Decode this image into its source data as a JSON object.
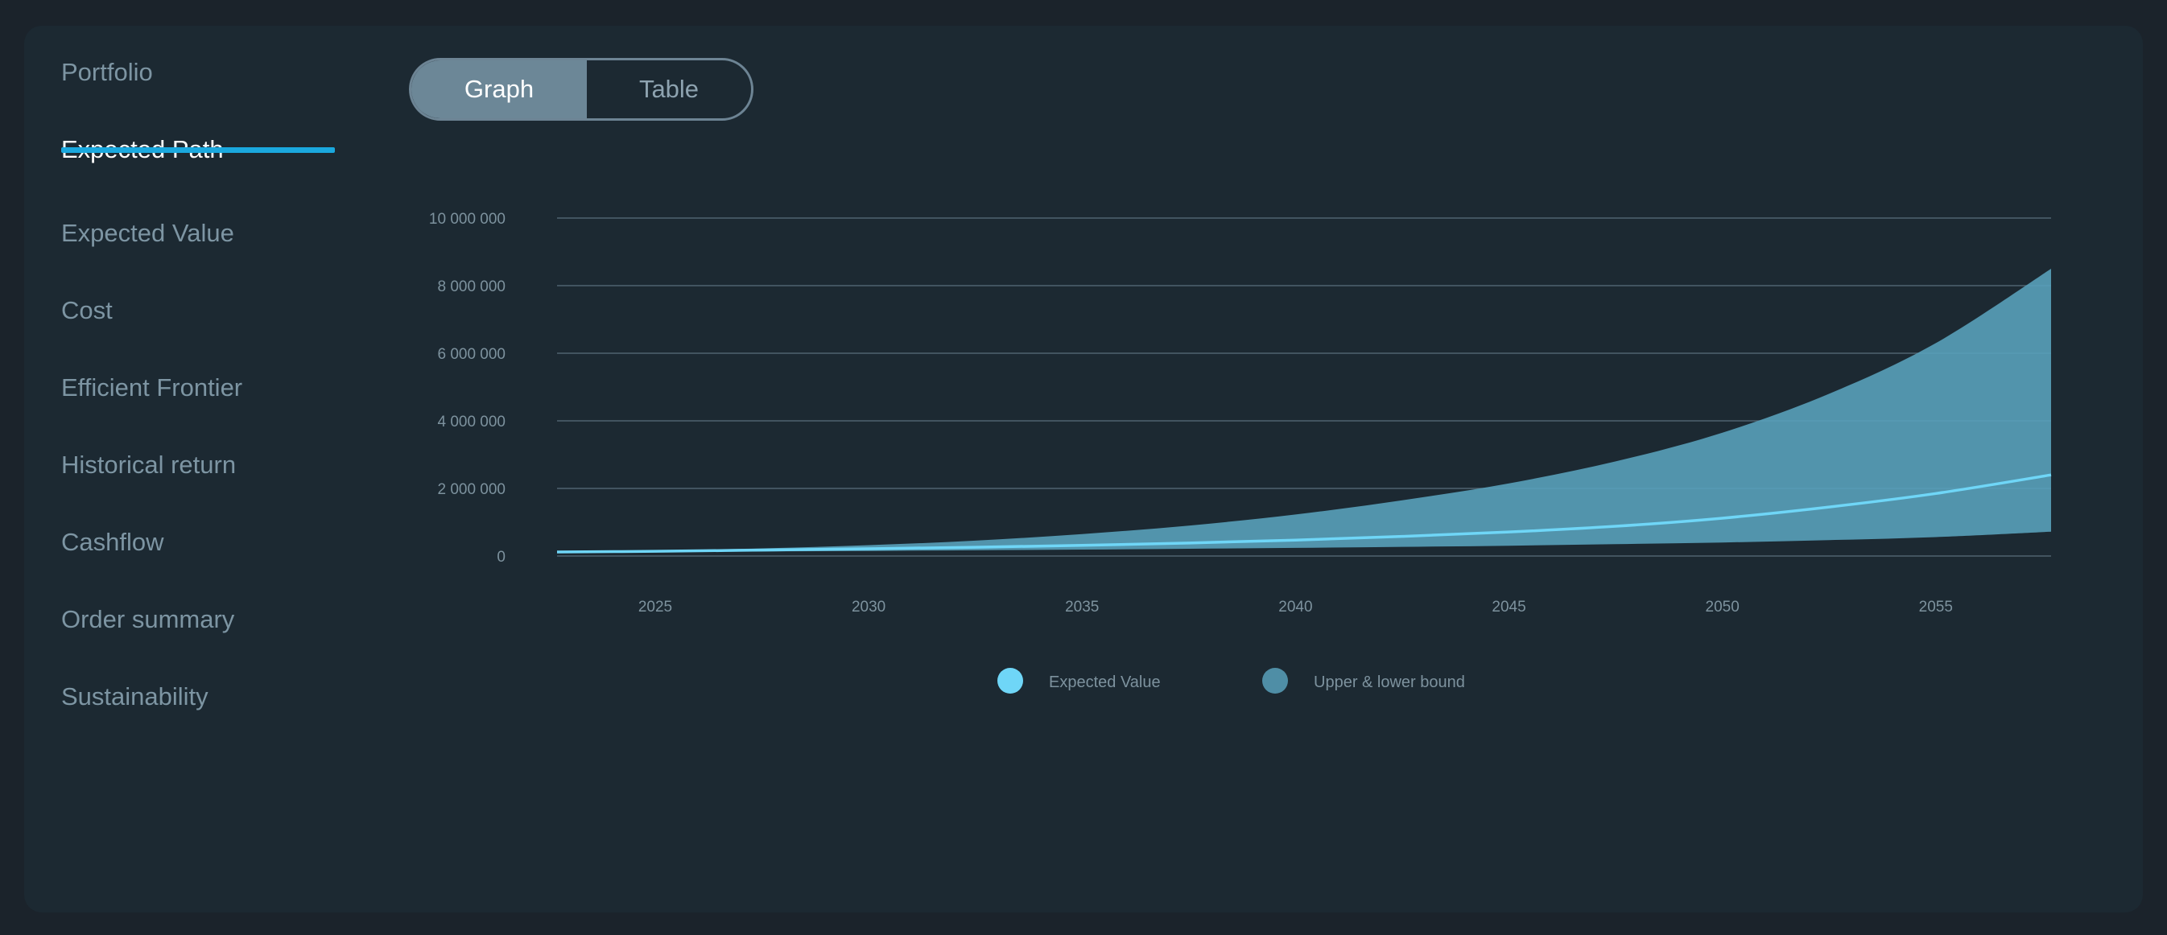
{
  "nav": {
    "items": [
      {
        "label": "Portfolio",
        "name": "sidebar-item-portfolio",
        "active": false
      },
      {
        "label": "Expected Path",
        "name": "sidebar-item-expected-path",
        "active": true
      },
      {
        "label": "Expected Value",
        "name": "sidebar-item-expected-value",
        "active": false
      },
      {
        "label": "Cost",
        "name": "sidebar-item-cost",
        "active": false
      },
      {
        "label": "Efficient Frontier",
        "name": "sidebar-item-efficient-frontier",
        "active": false
      },
      {
        "label": "Historical return",
        "name": "sidebar-item-historical-return",
        "active": false
      },
      {
        "label": "Cashflow",
        "name": "sidebar-item-cashflow",
        "active": false
      },
      {
        "label": "Order summary",
        "name": "sidebar-item-order-summary",
        "active": false
      },
      {
        "label": "Sustainability",
        "name": "sidebar-item-sustainability",
        "active": false
      }
    ]
  },
  "view_toggle": {
    "graph_label": "Graph",
    "table_label": "Table",
    "selected": "Graph"
  },
  "colors": {
    "accent": "#1aa8de",
    "expected_line": "#6fd6f7",
    "bound_area": "#5aa3bd",
    "grid": "#4f636f",
    "tick_text": "#7d929e"
  },
  "chart_data": {
    "type": "area",
    "x": [
      2022.7,
      2025,
      2027.5,
      2030,
      2032.5,
      2035,
      2037.5,
      2040,
      2042.5,
      2045,
      2047.5,
      2050,
      2052.5,
      2055,
      2057.7
    ],
    "series": [
      {
        "name": "Expected Value",
        "type": "line",
        "values": [
          120000,
          140000,
          175000,
          215000,
          260000,
          315000,
          385000,
          470000,
          580000,
          710000,
          880000,
          1120000,
          1450000,
          1850000,
          2400000
        ]
      },
      {
        "name": "Upper & lower bound",
        "type": "band",
        "upper": [
          130000,
          165000,
          225000,
          320000,
          455000,
          650000,
          900000,
          1230000,
          1650000,
          2150000,
          2800000,
          3650000,
          4800000,
          6300000,
          8500000
        ],
        "lower": [
          115000,
          120000,
          135000,
          150000,
          170000,
          190000,
          215000,
          240000,
          270000,
          305000,
          350000,
          400000,
          470000,
          560000,
          720000
        ]
      }
    ],
    "x_ticks": [
      "2025",
      "2030",
      "2035",
      "2040",
      "2045",
      "2050",
      "2055"
    ],
    "x_tick_values": [
      2025,
      2030,
      2035,
      2040,
      2045,
      2050,
      2055
    ],
    "y_ticks": [
      "0",
      "2 000 000",
      "4 000 000",
      "6 000 000",
      "8 000 000",
      "10 000 000"
    ],
    "y_tick_values": [
      0,
      2000000,
      4000000,
      6000000,
      8000000,
      10000000
    ],
    "xlim": [
      2022.7,
      2057.7
    ],
    "ylim": [
      0,
      10000000
    ],
    "grid": "horizontal",
    "legend": {
      "placement": "bottom-center",
      "items": [
        "Expected Value",
        "Upper & lower bound"
      ]
    }
  }
}
